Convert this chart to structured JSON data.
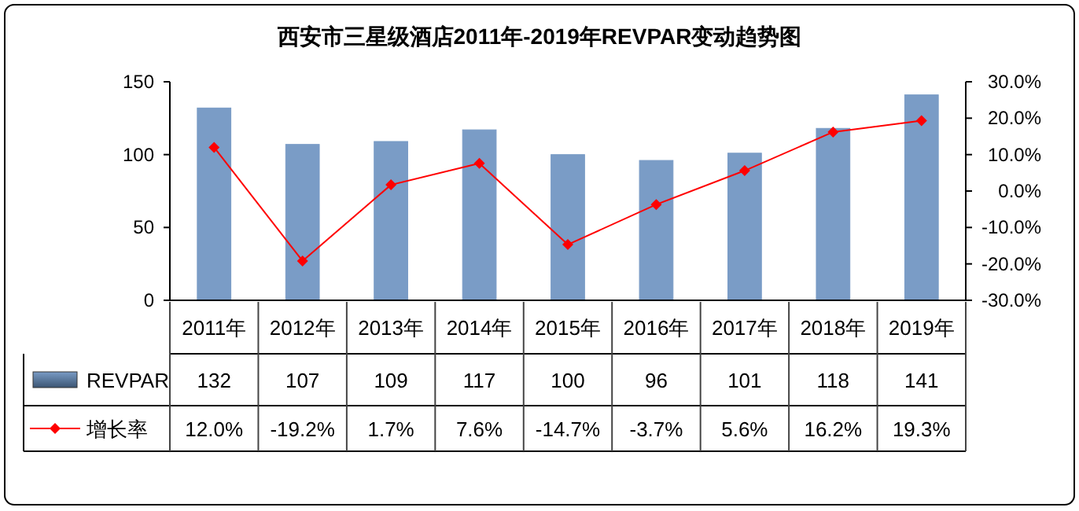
{
  "chart_data": {
    "type": "bar",
    "title": "西安市三星级酒店2011年-2019年REVPAR变动趋势图",
    "categories": [
      "2011年",
      "2012年",
      "2013年",
      "2014年",
      "2015年",
      "2016年",
      "2017年",
      "2018年",
      "2019年"
    ],
    "series": [
      {
        "name": "REVPAR",
        "color": "#7a9cc6",
        "values": [
          132,
          107,
          109,
          117,
          100,
          96,
          101,
          118,
          141
        ],
        "value_labels": [
          "132",
          "107",
          "109",
          "117",
          "100",
          "96",
          "101",
          "118",
          "141"
        ]
      },
      {
        "name": "增长率",
        "type": "line",
        "axis": "y2",
        "color": "#ff0000",
        "values": [
          12.0,
          -19.2,
          1.7,
          7.6,
          -14.7,
          -3.7,
          5.6,
          16.2,
          19.3
        ],
        "value_labels": [
          "12.0%",
          "-19.2%",
          "1.7%",
          "7.6%",
          "-14.7%",
          "-3.7%",
          "5.6%",
          "16.2%",
          "19.3%"
        ]
      }
    ],
    "ylim": [
      0,
      150
    ],
    "yticks": [
      0,
      50,
      100,
      150
    ],
    "y2lim": [
      -30,
      30
    ],
    "y2ticks": [
      {
        "value": -30,
        "label": "-30.0%"
      },
      {
        "value": -20,
        "label": "-20.0%"
      },
      {
        "value": -10,
        "label": "-10.0%"
      },
      {
        "value": 0,
        "label": "0.0%"
      },
      {
        "value": 10,
        "label": "10.0%"
      },
      {
        "value": 20,
        "label": "20.0%"
      },
      {
        "value": 30,
        "label": "30.0%"
      }
    ],
    "marker": "diamond",
    "legend": "bottom left"
  }
}
